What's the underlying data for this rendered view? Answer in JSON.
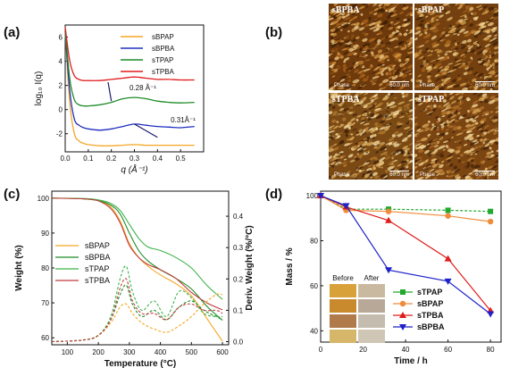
{
  "panel_labels": {
    "a": "(a)",
    "b": "(b)",
    "c": "(c)",
    "d": "(d)"
  },
  "chart_data": [
    {
      "panel": "a",
      "type": "line",
      "xlabel": "q (Å⁻¹)",
      "ylabel": "log₁₀ I(q)",
      "xlim": [
        0.0,
        0.6
      ],
      "ylim": [
        -3.5,
        7
      ],
      "xticks": [
        0.0,
        0.1,
        0.2,
        0.3,
        0.4,
        0.5
      ],
      "xtick_labels": [
        "0.0",
        "0.1",
        "0.2",
        "0.3",
        "0.4",
        "0.5"
      ],
      "yticks": [
        -2,
        0,
        2,
        4,
        6
      ],
      "ytick_labels": [
        "-2",
        "0",
        "2",
        "4",
        "6"
      ],
      "legend_position": "top-right",
      "series": [
        {
          "name": "sBPAP",
          "color": "#f5a623",
          "x": [
            0.0,
            0.02,
            0.04,
            0.06,
            0.08,
            0.1,
            0.15,
            0.2,
            0.25,
            0.3,
            0.35,
            0.4,
            0.45,
            0.5,
            0.56
          ],
          "values": [
            6.5,
            0.5,
            -2.0,
            -2.6,
            -2.8,
            -2.9,
            -3.0,
            -3.0,
            -2.95,
            -2.9,
            -2.95,
            -2.95,
            -2.95,
            -2.95,
            -2.95
          ]
        },
        {
          "name": "sBPBA",
          "color": "#1f2fbf",
          "x": [
            0.0,
            0.02,
            0.04,
            0.06,
            0.08,
            0.1,
            0.15,
            0.2,
            0.25,
            0.3,
            0.35,
            0.4,
            0.45,
            0.5,
            0.56
          ],
          "values": [
            6.5,
            1.5,
            -0.8,
            -1.3,
            -1.5,
            -1.6,
            -1.7,
            -1.6,
            -1.4,
            -1.2,
            -1.3,
            -1.4,
            -1.45,
            -1.5,
            -1.4
          ]
        },
        {
          "name": "sTPAP",
          "color": "#1e8c28",
          "x": [
            0.0,
            0.02,
            0.04,
            0.06,
            0.08,
            0.1,
            0.15,
            0.2,
            0.25,
            0.3,
            0.35,
            0.4,
            0.45,
            0.5,
            0.56
          ],
          "values": [
            6.6,
            2.5,
            0.8,
            0.4,
            0.3,
            0.3,
            0.4,
            0.6,
            0.9,
            1.0,
            0.9,
            0.7,
            0.6,
            0.55,
            0.6
          ]
        },
        {
          "name": "sTPBA",
          "color": "#e01b1b",
          "x": [
            0.0,
            0.02,
            0.04,
            0.06,
            0.08,
            0.1,
            0.15,
            0.2,
            0.25,
            0.3,
            0.35,
            0.4,
            0.45,
            0.5,
            0.56
          ],
          "values": [
            6.8,
            4.0,
            2.8,
            2.5,
            2.4,
            2.4,
            2.4,
            2.5,
            2.6,
            2.7,
            2.6,
            2.5,
            2.5,
            2.45,
            2.45
          ]
        }
      ],
      "annotations": [
        {
          "text": "0.28 Å⁻¹",
          "x": 0.28,
          "y": 0.9
        },
        {
          "text": "0.31Å⁻¹",
          "x": 0.31,
          "y": -1.25
        }
      ]
    },
    {
      "panel": "c",
      "type": "line",
      "xlabel": "Temperature (°C)",
      "ylabel": "Weight (%)",
      "ylabel_right": "Deriv. Weight (%/°C)",
      "xlim": [
        50,
        620
      ],
      "ylim": [
        58,
        102
      ],
      "ylim_right": [
        -0.01,
        0.48
      ],
      "xticks": [
        100,
        200,
        300,
        400,
        500,
        600
      ],
      "xtick_labels": [
        "100",
        "200",
        "300",
        "400",
        "500",
        "600"
      ],
      "yticks": [
        60,
        70,
        80,
        90,
        100
      ],
      "ytick_labels": [
        "60",
        "70",
        "80",
        "90",
        "100"
      ],
      "yticks_right": [
        0.0,
        0.1,
        0.2,
        0.3,
        0.4
      ],
      "ytick_labels_right": [
        "0.0",
        "0.1",
        "0.2",
        "0.3",
        "0.4"
      ],
      "legend_position": "center-left",
      "series": [
        {
          "name": "sBPAP",
          "color": "#f5a623",
          "x": [
            50,
            150,
            200,
            240,
            270,
            300,
            330,
            360,
            400,
            450,
            500,
            550,
            600
          ],
          "values": [
            100,
            99.8,
            99.3,
            97.5,
            93.5,
            87.0,
            83.0,
            80.5,
            78.0,
            75.5,
            72.0,
            65.5,
            59.0
          ]
        },
        {
          "name": "sBPBA",
          "color": "#1e8c28",
          "x": [
            50,
            150,
            200,
            240,
            270,
            300,
            330,
            360,
            400,
            450,
            500,
            550,
            600
          ],
          "values": [
            100,
            99.8,
            99.3,
            98.0,
            95.5,
            90.0,
            85.0,
            82.0,
            79.5,
            77.0,
            74.0,
            69.0,
            65.0
          ]
        },
        {
          "name": "sTPAP",
          "color": "#3cb44b",
          "x": [
            50,
            150,
            200,
            240,
            270,
            300,
            330,
            360,
            400,
            450,
            500,
            550,
            600
          ],
          "values": [
            100,
            99.9,
            99.5,
            98.5,
            96.5,
            92.5,
            88.5,
            86.0,
            85.0,
            83.0,
            80.0,
            75.0,
            71.0
          ]
        },
        {
          "name": "sTPBA",
          "color": "#c23b3b",
          "x": [
            50,
            150,
            200,
            240,
            270,
            300,
            330,
            360,
            400,
            450,
            500,
            550,
            600
          ],
          "values": [
            100,
            99.8,
            99.2,
            97.0,
            93.0,
            86.5,
            83.0,
            81.0,
            79.5,
            77.0,
            73.0,
            70.0,
            68.0
          ]
        }
      ],
      "derivative_series": [
        {
          "name": "sBPAP",
          "color": "#f5a623",
          "x": [
            50,
            150,
            200,
            240,
            270,
            290,
            310,
            340,
            380,
            420,
            460,
            500,
            540,
            580,
            600
          ],
          "values": [
            0.0,
            0.005,
            0.02,
            0.06,
            0.11,
            0.12,
            0.09,
            0.06,
            0.04,
            0.03,
            0.05,
            0.08,
            0.12,
            0.15,
            0.15
          ]
        },
        {
          "name": "sBPBA",
          "color": "#1e8c28",
          "x": [
            50,
            150,
            200,
            240,
            270,
            290,
            310,
            340,
            380,
            420,
            460,
            500,
            540,
            580,
            600
          ],
          "values": [
            0.0,
            0.005,
            0.02,
            0.07,
            0.15,
            0.18,
            0.12,
            0.08,
            0.1,
            0.07,
            0.11,
            0.13,
            0.1,
            0.08,
            0.07
          ]
        },
        {
          "name": "sTPAP",
          "color": "#3cb44b",
          "x": [
            50,
            150,
            200,
            240,
            270,
            290,
            310,
            340,
            380,
            420,
            460,
            500,
            540,
            580,
            600
          ],
          "values": [
            0.0,
            0.005,
            0.02,
            0.08,
            0.2,
            0.24,
            0.16,
            0.1,
            0.13,
            0.08,
            0.16,
            0.14,
            0.09,
            0.08,
            0.08
          ]
        },
        {
          "name": "sTPBA",
          "color": "#c23b3b",
          "x": [
            50,
            150,
            200,
            240,
            270,
            290,
            310,
            340,
            380,
            420,
            460,
            500,
            540,
            580,
            600
          ],
          "values": [
            0.0,
            0.005,
            0.02,
            0.07,
            0.17,
            0.2,
            0.13,
            0.09,
            0.09,
            0.07,
            0.11,
            0.12,
            0.1,
            0.1,
            0.09
          ]
        }
      ]
    },
    {
      "panel": "d",
      "type": "line",
      "xlabel": "Time / h",
      "ylabel": "Mass / %",
      "xlim": [
        0,
        85
      ],
      "ylim": [
        35,
        102
      ],
      "xticks": [
        0,
        20,
        40,
        60,
        80
      ],
      "xtick_labels": [
        "0",
        "20",
        "40",
        "60",
        "80"
      ],
      "yticks": [
        40,
        60,
        80,
        100
      ],
      "ytick_labels": [
        "40",
        "60",
        "80",
        "100"
      ],
      "legend_position": "bottom-right",
      "categories": [
        0,
        12,
        32,
        60,
        80
      ],
      "series": [
        {
          "name": "sTPAP",
          "color": "#22a82e",
          "marker": "square",
          "dashed": true,
          "values": [
            100,
            94,
            94,
            93.5,
            93
          ]
        },
        {
          "name": "sBPAP",
          "color": "#f08b3a",
          "marker": "circle",
          "dashed": false,
          "values": [
            100,
            93.5,
            93,
            91,
            88.5
          ]
        },
        {
          "name": "sTPBA",
          "color": "#e01b1b",
          "marker": "triangle-up",
          "dashed": false,
          "values": [
            100,
            95,
            89,
            72,
            49
          ]
        },
        {
          "name": "sBPBA",
          "color": "#1e22c8",
          "marker": "triangle-down",
          "dashed": false,
          "values": [
            100,
            95.5,
            67,
            62,
            47.5
          ]
        }
      ],
      "inset_labels": {
        "before": "Before",
        "after": "After"
      }
    }
  ],
  "afm": {
    "cells": [
      {
        "label": "sBPBA",
        "phase": "Phase",
        "scale": "60.0 nm"
      },
      {
        "label": "sBPAP",
        "phase": "Phase",
        "scale": "60.0 nm"
      },
      {
        "label": "sTPBA",
        "phase": "Phase",
        "scale": "60.0 nm"
      },
      {
        "label": "sTPAP",
        "phase": "Phase",
        "scale": "60.0 nm"
      }
    ]
  }
}
